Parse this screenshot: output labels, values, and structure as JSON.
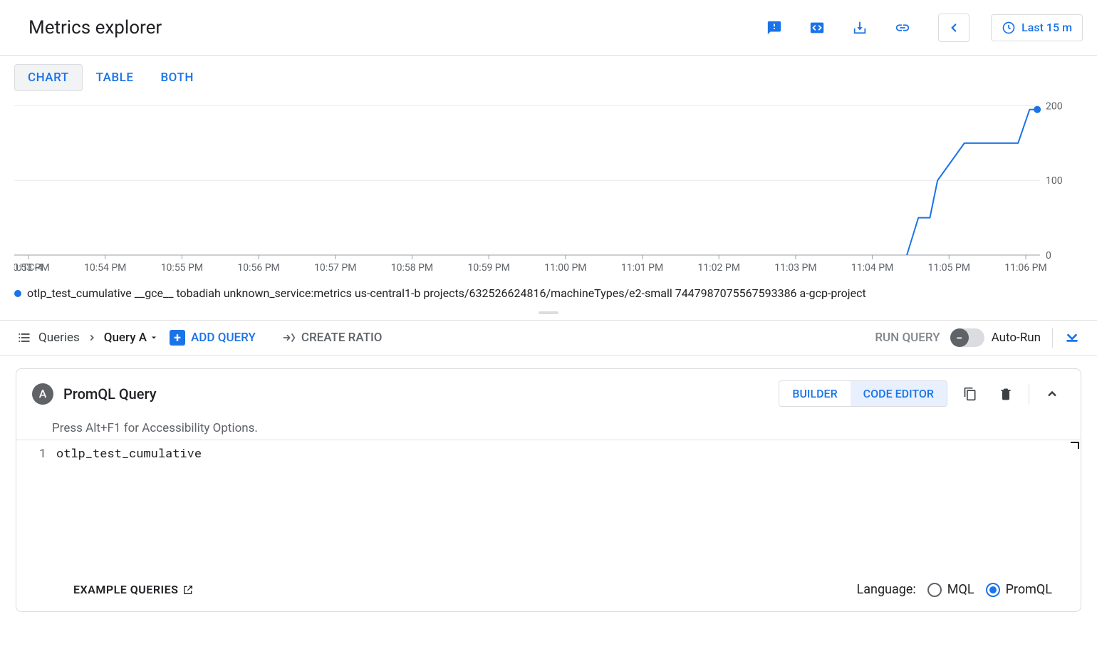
{
  "header": {
    "title": "Metrics explorer",
    "time_range": "Last 15 m"
  },
  "view_tabs": {
    "chart": "CHART",
    "table": "TABLE",
    "both": "BOTH",
    "active": "chart"
  },
  "chart": {
    "type": "line",
    "timezone_label": "UTC-4",
    "x_ticks": [
      "10:53 PM",
      "10:54 PM",
      "10:55 PM",
      "10:56 PM",
      "10:57 PM",
      "10:58 PM",
      "10:59 PM",
      "11:00 PM",
      "11:01 PM",
      "11:02 PM",
      "11:03 PM",
      "11:04 PM",
      "11:05 PM",
      "11:06 PM"
    ],
    "y_ticks": [
      0,
      100,
      200
    ],
    "ylim": [
      0,
      210
    ],
    "series_color": "#1a73e8",
    "line_width": 2,
    "grid_color": "#e8eaed",
    "axis_color": "#9aa0a6",
    "tick_font_size": 14,
    "background": "#ffffff",
    "data_points": [
      {
        "x": 12.45,
        "y": 0
      },
      {
        "x": 12.6,
        "y": 50
      },
      {
        "x": 12.75,
        "y": 50
      },
      {
        "x": 12.85,
        "y": 100
      },
      {
        "x": 13.2,
        "y": 150
      },
      {
        "x": 13.9,
        "y": 150
      },
      {
        "x": 14.05,
        "y": 195
      },
      {
        "x": 14.15,
        "y": 195
      }
    ],
    "end_marker": true,
    "marker_radius": 5
  },
  "legend": {
    "text": "otlp_test_cumulative __gce__ tobadiah unknown_service:metrics us-central1-b projects/632526624816/machineTypes/e2-small 7447987075567593386 a-gcp-project",
    "color": "#1a73e8"
  },
  "toolbar": {
    "queries_label": "Queries",
    "active_query": "Query A",
    "add_query": "ADD QUERY",
    "create_ratio": "CREATE RATIO",
    "run_query": "RUN QUERY",
    "auto_run": "Auto-Run",
    "auto_run_on": false
  },
  "query_panel": {
    "badge": "A",
    "title": "PromQL Query",
    "builder": "BUILDER",
    "code_editor": "CODE EDITOR",
    "active_mode": "code_editor",
    "accessibility_hint": "Press Alt+F1 for Accessibility Options.",
    "line_number": "1",
    "code": "otlp_test_cumulative"
  },
  "footer": {
    "example_queries": "EXAMPLE QUERIES",
    "language_label": "Language:",
    "mql": "MQL",
    "promql": "PromQL",
    "selected": "promql"
  }
}
